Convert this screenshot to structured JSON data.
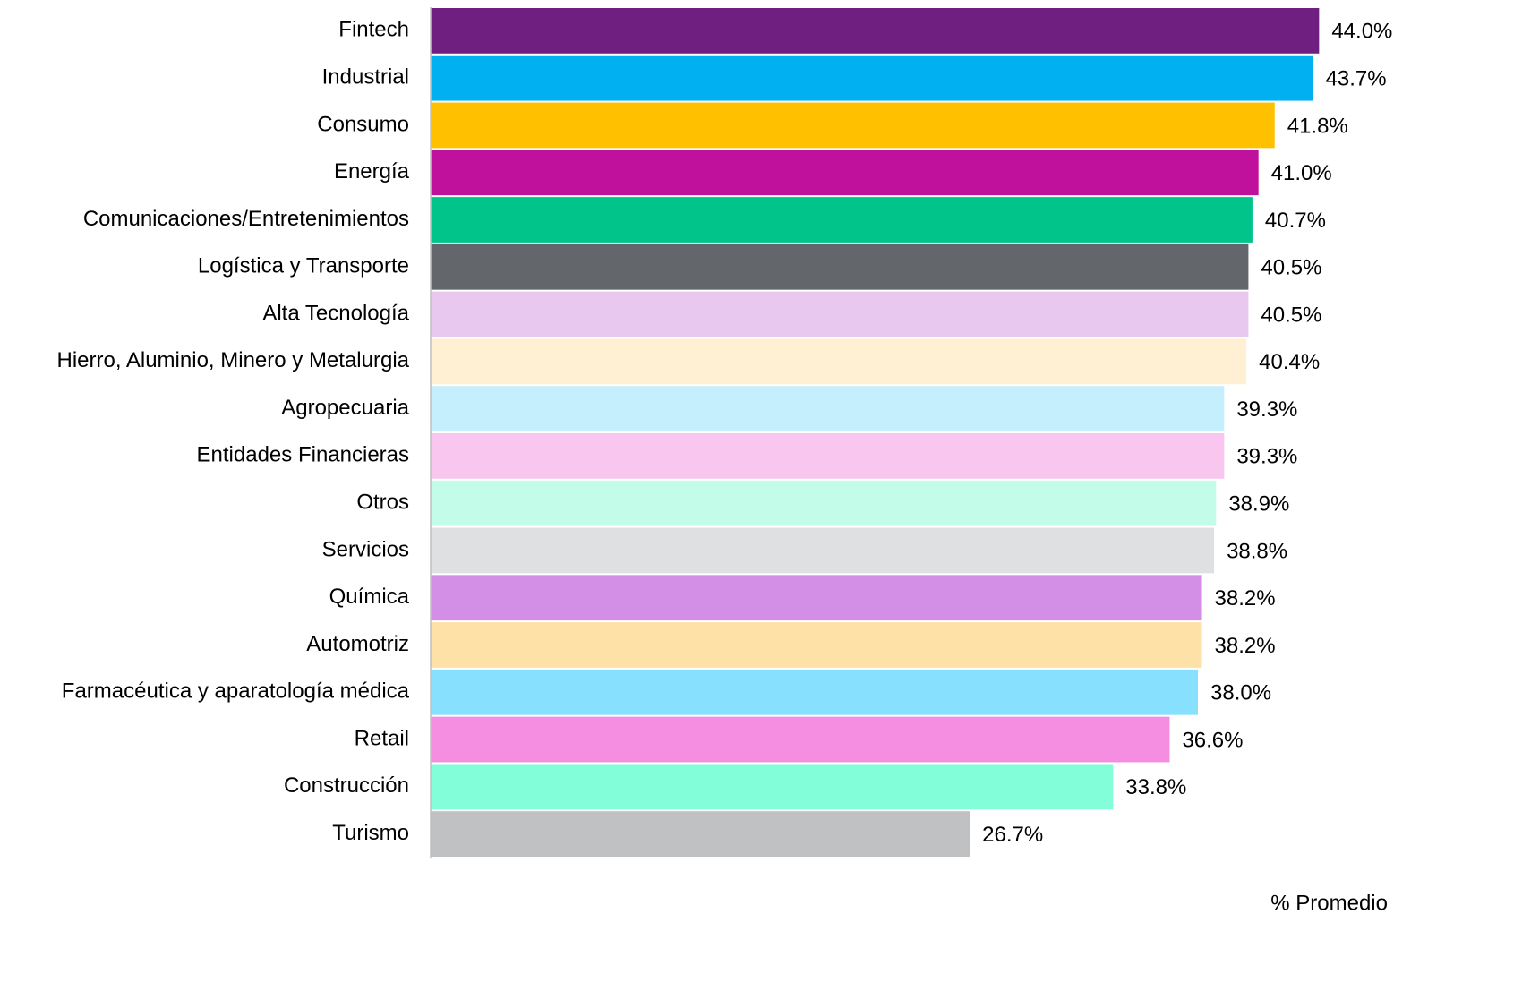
{
  "chart_data": {
    "type": "hbar",
    "categories": [
      "Fintech",
      "Industrial",
      "Consumo",
      "Energía",
      "Comunicaciones/Entretenimientos",
      "Logística y Transporte",
      "Alta Tecnología",
      "Hierro, Aluminio, Minero y Metalurgia",
      "Agropecuaria",
      "Entidades Financieras",
      "Otros",
      "Servicios",
      "Química",
      "Automotriz",
      "Farmacéutica y aparatología médica",
      "Retail",
      "Construcción",
      "Turismo"
    ],
    "values": [
      44.0,
      43.7,
      41.8,
      41.0,
      40.7,
      40.5,
      40.5,
      40.4,
      39.3,
      39.3,
      38.9,
      38.8,
      38.2,
      38.2,
      38.0,
      36.6,
      33.8,
      26.7
    ],
    "value_labels": [
      "44.0%",
      "43.7%",
      "41.8%",
      "41.0%",
      "40.7%",
      "40.5%",
      "40.5%",
      "40.4%",
      "39.3%",
      "39.3%",
      "38.9%",
      "38.8%",
      "38.2%",
      "38.2%",
      "38.0%",
      "36.6%",
      "33.8%",
      "26.7%"
    ],
    "colors": [
      "#6f1f80",
      "#00b0f0",
      "#ffc000",
      "#c0119d",
      "#00c48a",
      "#63666a",
      "#e9c8f0",
      "#fff0d4",
      "#c5effc",
      "#f8c6ef",
      "#c3fde9",
      "#dfe0e2",
      "#d38ee6",
      "#fee1a6",
      "#87e0fd",
      "#f58ee0",
      "#82ffd8",
      "#c0c1c3"
    ],
    "xlabel": "% Promedio",
    "xlim": [
      0,
      47
    ]
  }
}
